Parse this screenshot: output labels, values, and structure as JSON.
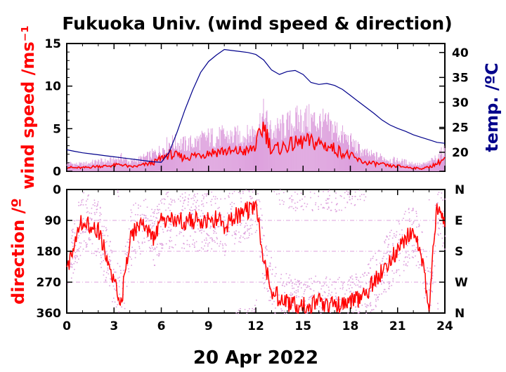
{
  "chart_data": [
    {
      "type": "line",
      "title": "Fukuoka Univ. (wind speed & direction)",
      "ylabel_left": "wind speed /ms⁻¹",
      "ylabel_right": "temp. /ºC",
      "xlim": [
        0,
        24
      ],
      "ylim_left": [
        0,
        15
      ],
      "ylim_right": [
        16.2,
        41.8
      ],
      "xticks": [
        "0",
        "3",
        "6",
        "9",
        "12",
        "15",
        "18",
        "21",
        "24"
      ],
      "yticks_left": [
        "0",
        "5",
        "10",
        "15"
      ],
      "yticks_right": [
        "20",
        "25",
        "30",
        "35",
        "40"
      ],
      "colors": {
        "mean": "#ff0000",
        "gust": "#dda0dd",
        "temp": "#00008b"
      },
      "series": [
        {
          "style": "mean wind speed",
          "x": [
            0,
            0.5,
            1,
            1.5,
            2,
            2.5,
            3,
            3.5,
            4,
            4.5,
            5,
            5.5,
            6,
            6.5,
            7,
            7.5,
            8,
            8.5,
            9,
            9.5,
            10,
            10.5,
            11,
            11.5,
            12,
            12.5,
            13,
            13.5,
            14,
            14.5,
            15,
            15.5,
            16,
            16.5,
            17,
            17.5,
            18,
            18.5,
            19,
            19.5,
            20,
            20.5,
            21,
            21.5,
            22,
            22.5,
            23,
            23.5,
            24
          ],
          "values": [
            0.5,
            0.4,
            0.4,
            0.5,
            0.6,
            0.6,
            0.7,
            0.8,
            0.5,
            0.6,
            0.8,
            1.0,
            1.5,
            2.0,
            1.8,
            1.6,
            1.8,
            2.0,
            2.2,
            2.3,
            2.4,
            2.2,
            2.4,
            2.3,
            3.0,
            5.5,
            2.5,
            2.7,
            3.0,
            3.2,
            3.5,
            3.4,
            3.3,
            3.0,
            2.6,
            2.2,
            1.8,
            1.3,
            1.0,
            0.9,
            0.8,
            0.6,
            0.6,
            0.5,
            0.4,
            0.3,
            0.5,
            0.9,
            1.5
          ]
        },
        {
          "style": "gust",
          "x": [
            0,
            0.5,
            1,
            1.5,
            2,
            2.5,
            3,
            3.5,
            4,
            4.5,
            5,
            5.5,
            6,
            6.5,
            7,
            7.5,
            8,
            8.5,
            9,
            9.5,
            10,
            10.5,
            11,
            11.5,
            12,
            12.5,
            13,
            13.5,
            14,
            14.5,
            15,
            15.5,
            16,
            16.5,
            17,
            17.5,
            18,
            18.5,
            19,
            19.5,
            20,
            20.5,
            21,
            21.5,
            22,
            22.5,
            23,
            23.5,
            24
          ],
          "values": [
            1.2,
            1.0,
            1.0,
            1.2,
            1.4,
            1.4,
            1.6,
            2.0,
            1.3,
            1.6,
            2.0,
            2.5,
            3.0,
            4.0,
            4.0,
            3.8,
            4.0,
            4.4,
            4.8,
            4.8,
            5.0,
            4.8,
            5.0,
            5.0,
            6.0,
            7.8,
            5.5,
            6.0,
            6.5,
            7.0,
            7.4,
            7.2,
            7.0,
            6.5,
            6.0,
            5.0,
            4.2,
            3.2,
            2.5,
            2.2,
            2.0,
            1.6,
            1.5,
            1.3,
            1.1,
            0.9,
            1.2,
            2.0,
            3.0
          ]
        },
        {
          "style": "temperature",
          "x": [
            0,
            0.5,
            1,
            1.5,
            2,
            2.5,
            3,
            3.5,
            4,
            4.5,
            5,
            5.5,
            6,
            6.5,
            7,
            7.5,
            8,
            8.5,
            9,
            9.5,
            10,
            10.5,
            11,
            11.5,
            12,
            12.5,
            13,
            13.5,
            14,
            14.5,
            15,
            15.5,
            16,
            16.5,
            17,
            17.5,
            18,
            18.5,
            19,
            19.5,
            20,
            20.5,
            21,
            21.5,
            22,
            22.5,
            23,
            23.5,
            24
          ],
          "values": [
            20.5,
            20.2,
            19.9,
            19.7,
            19.5,
            19.3,
            19.1,
            18.9,
            18.7,
            18.5,
            18.3,
            18.1,
            18.0,
            20.0,
            24.0,
            28.5,
            32.5,
            36.0,
            38.2,
            39.5,
            40.6,
            40.4,
            40.2,
            40.0,
            39.6,
            38.5,
            36.5,
            35.6,
            36.2,
            36.4,
            35.6,
            34.0,
            33.6,
            33.8,
            33.4,
            32.6,
            31.4,
            30.2,
            29.0,
            27.8,
            26.5,
            25.5,
            24.8,
            24.2,
            23.5,
            23.0,
            22.5,
            22.0,
            21.8
          ]
        }
      ]
    },
    {
      "type": "scatter",
      "ylabel_left": "direction /º",
      "xlabel": "20 Apr 2022",
      "xlim": [
        0,
        24
      ],
      "ylim": [
        0,
        360
      ],
      "xticks": [
        "0",
        "3",
        "6",
        "9",
        "12",
        "15",
        "18",
        "21",
        "24"
      ],
      "yticks_left": [
        "0",
        "90",
        "180",
        "270",
        "360"
      ],
      "yticks_right": [
        "N",
        "E",
        "S",
        "W",
        "N"
      ],
      "series": [
        {
          "style": "mean direction",
          "x": [
            0,
            0.5,
            1,
            1.5,
            2,
            2.5,
            3,
            3.5,
            4,
            4.5,
            5,
            5.5,
            6,
            6.5,
            7,
            7.5,
            8,
            8.5,
            9,
            9.5,
            10,
            10.5,
            11,
            11.5,
            12,
            12.5,
            13,
            13.5,
            14,
            14.5,
            15,
            15.5,
            16,
            16.5,
            17,
            17.5,
            18,
            18.5,
            19,
            19.5,
            20,
            20.5,
            21,
            21.5,
            22,
            22.5,
            23,
            23.5,
            24
          ],
          "values": [
            250,
            140,
            90,
            100,
            120,
            190,
            280,
            320,
            140,
            110,
            100,
            150,
            90,
            90,
            95,
            90,
            90,
            95,
            92,
            88,
            110,
            80,
            70,
            60,
            40,
            200,
            290,
            320,
            330,
            340,
            335,
            340,
            330,
            335,
            340,
            335,
            330,
            320,
            300,
            270,
            240,
            200,
            180,
            140,
            120,
            200,
            330,
            50,
            100
          ]
        }
      ]
    }
  ]
}
